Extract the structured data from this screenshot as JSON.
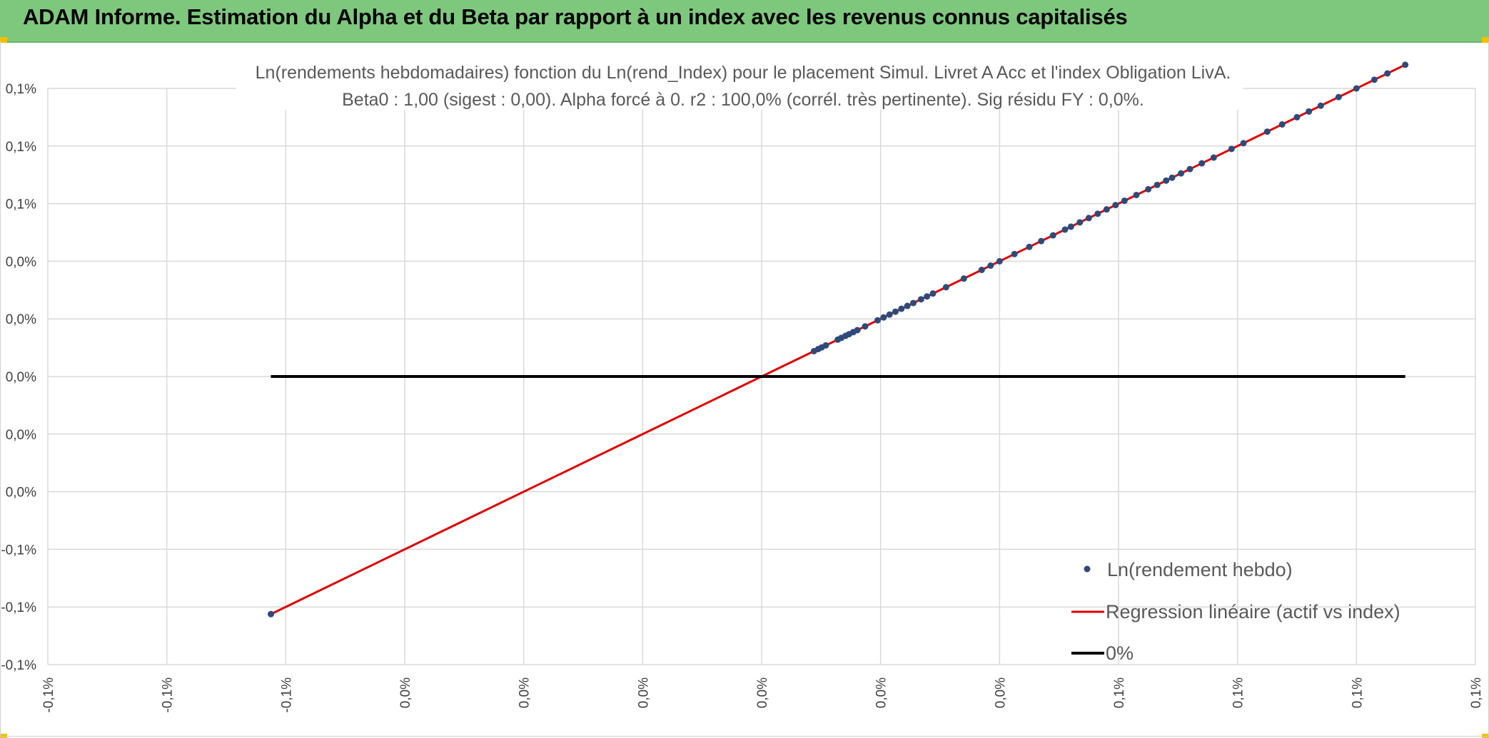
{
  "banner": {
    "title": "ADAM Informe. Estimation du Alpha et du Beta par rapport à un index avec les revenus connus capitalisés"
  },
  "colors": {
    "banner": "#7ec87e",
    "points": "#2e4a7a",
    "regression": "#e00000",
    "zero_line": "#000000",
    "grid": "#d9d9d9"
  },
  "chart_data": {
    "type": "scatter",
    "title": "Ln(rendements hebdomadaires) fonction du Ln(rend_Index) pour le placement Simul. Livret A Acc et l'index Obligation LivA.",
    "subtitle": "Beta0 : 1,00 (sigest : 0,00). Alpha forcé à 0. r2 : 100,0% (corrél. très pertinente). Sig résidu FY : 0,0%.",
    "xlim": [
      -0.0012,
      0.0012
    ],
    "ylim": [
      -0.001,
      0.001
    ],
    "x_ticks": [
      -0.0012,
      -0.001,
      -0.0008,
      -0.0006,
      -0.0004,
      -0.0002,
      0,
      0.0002,
      0.0004,
      0.0006,
      0.0008,
      0.001,
      0.0012
    ],
    "x_tick_labels": [
      "-0,1%",
      "-0,1%",
      "-0,1%",
      "0,0%",
      "0,0%",
      "0,0%",
      "0,0%",
      "0,0%",
      "0,0%",
      "0,1%",
      "0,1%",
      "0,1%",
      "0,1%"
    ],
    "y_ticks": [
      0.001,
      0.0008,
      0.0006,
      0.0004,
      0.0002,
      0,
      -0.0002,
      -0.0004,
      -0.0006,
      -0.0008,
      -0.001
    ],
    "y_tick_labels": [
      "0,1%",
      "0,1%",
      "0,1%",
      "0,0%",
      "0,0%",
      "0,0%",
      "0,0%",
      "0,0%",
      "-0,1%",
      "-0,1%",
      "-0,1%"
    ],
    "grid": true,
    "legend_position": "bottom-right",
    "series": [
      {
        "name": "Ln(rendement hebdo)",
        "kind": "points",
        "x": [
          -0.000825,
          8.8e-05,
          9.5e-05,
          0.000101,
          0.000108,
          0.000128,
          0.000134,
          0.000141,
          0.000147,
          0.000154,
          0.000161,
          0.000174,
          0.000195,
          0.000205,
          0.000215,
          0.000225,
          0.000235,
          0.000245,
          0.000255,
          0.000268,
          0.000278,
          0.000288,
          0.00031,
          0.00034,
          0.00037,
          0.000385,
          0.0004,
          0.000425,
          0.00045,
          0.00047,
          0.00049,
          0.00051,
          0.00052,
          0.000535,
          0.00055,
          0.000565,
          0.00058,
          0.000595,
          0.00061,
          0.00063,
          0.00065,
          0.000665,
          0.00068,
          0.00069,
          0.000705,
          0.00072,
          0.00074,
          0.00076,
          0.00079,
          0.00081,
          0.00085,
          0.000875,
          0.0009,
          0.00092,
          0.00094,
          0.00097,
          0.001,
          0.00103,
          0.001052,
          0.001082
        ],
        "y": [
          -0.000825,
          8.8e-05,
          9.5e-05,
          0.000101,
          0.000108,
          0.000128,
          0.000134,
          0.000141,
          0.000147,
          0.000154,
          0.000161,
          0.000174,
          0.000195,
          0.000205,
          0.000215,
          0.000225,
          0.000235,
          0.000245,
          0.000255,
          0.000268,
          0.000278,
          0.000288,
          0.00031,
          0.00034,
          0.00037,
          0.000385,
          0.0004,
          0.000425,
          0.00045,
          0.00047,
          0.00049,
          0.00051,
          0.00052,
          0.000535,
          0.00055,
          0.000565,
          0.00058,
          0.000595,
          0.00061,
          0.00063,
          0.00065,
          0.000665,
          0.00068,
          0.00069,
          0.000705,
          0.00072,
          0.00074,
          0.00076,
          0.00079,
          0.00081,
          0.00085,
          0.000875,
          0.0009,
          0.00092,
          0.00094,
          0.00097,
          0.001,
          0.00103,
          0.001052,
          0.001082
        ]
      },
      {
        "name": "Regression linéaire (actif vs index)",
        "kind": "line",
        "x": [
          -0.000825,
          0.001082
        ],
        "y": [
          -0.000825,
          0.001082
        ]
      },
      {
        "name": "0%",
        "kind": "line",
        "x": [
          -0.000825,
          0.001082
        ],
        "y": [
          0,
          0
        ]
      }
    ]
  }
}
